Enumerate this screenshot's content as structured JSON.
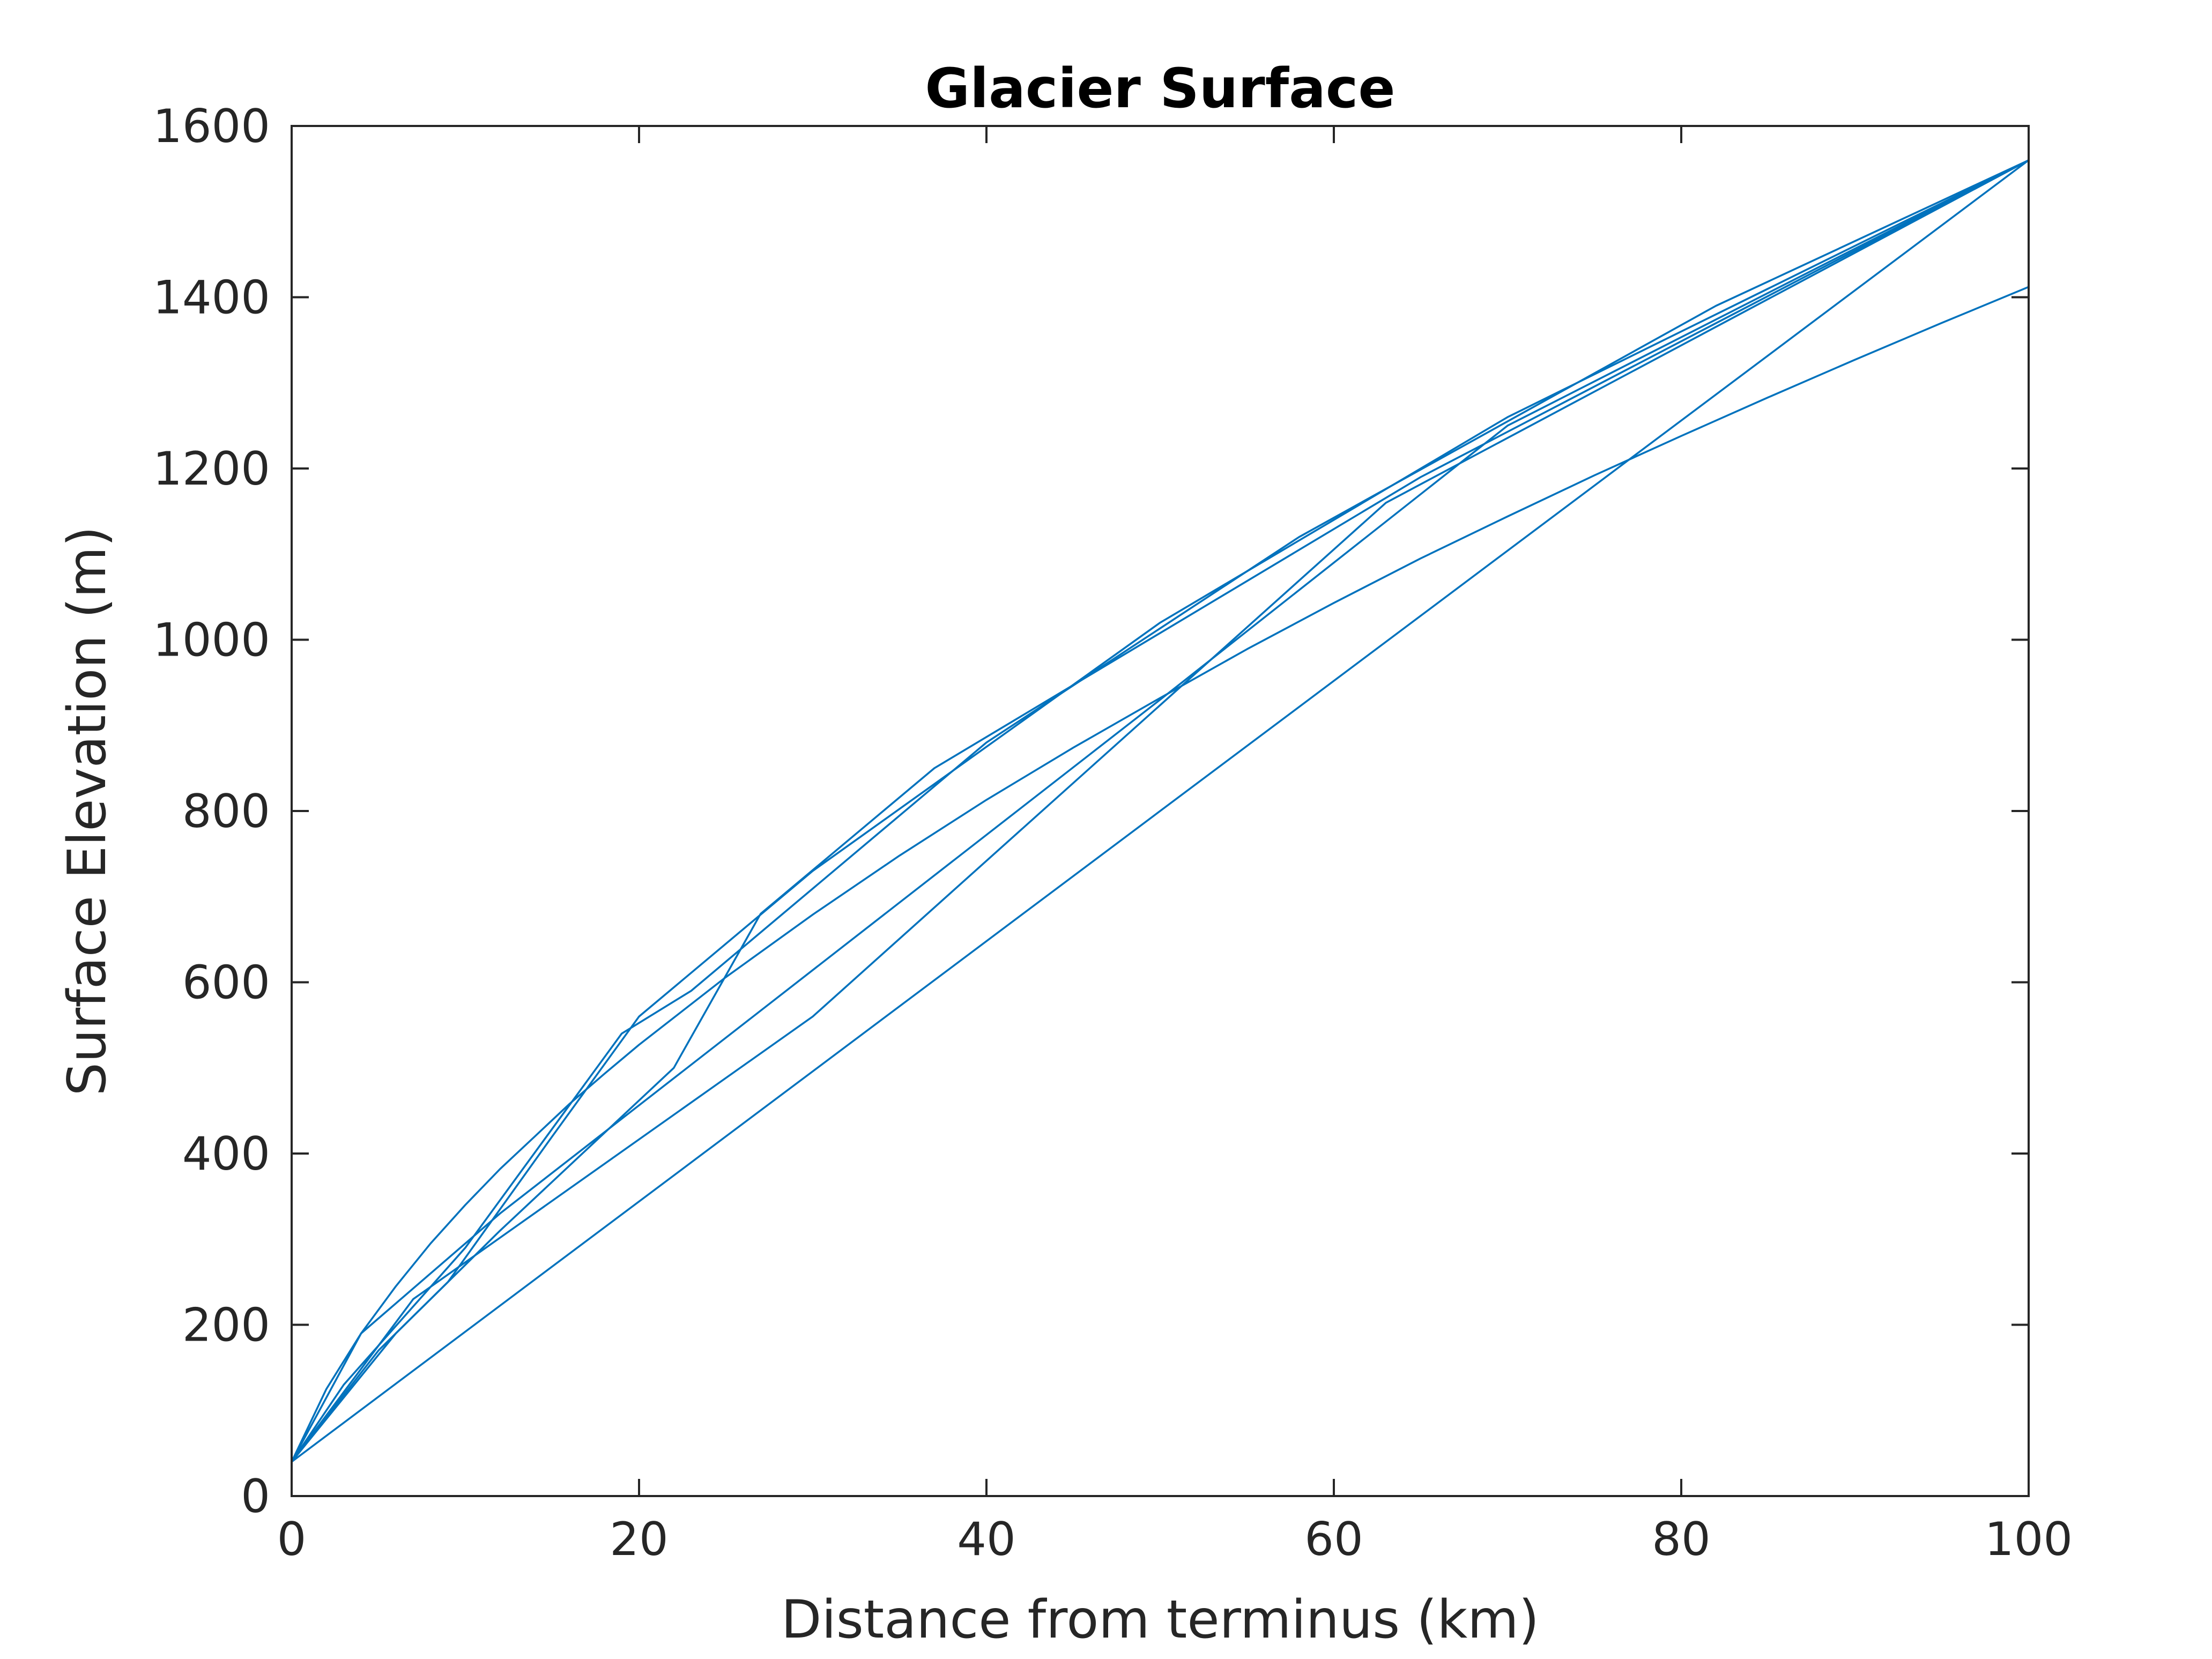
{
  "chart_data": {
    "type": "line",
    "title": "Glacier Surface",
    "xlabel": "Distance from terminus (km)",
    "ylabel": "Surface Elevation (m)",
    "xlim": [
      0,
      100
    ],
    "ylim": [
      0,
      1600
    ],
    "xticks": [
      0,
      20,
      40,
      60,
      80,
      100
    ],
    "yticks": [
      0,
      200,
      400,
      600,
      800,
      1000,
      1200,
      1400,
      1600
    ],
    "grid": false,
    "legend": "none",
    "line_color": "#0072BD",
    "series": [
      {
        "x": [
          0,
          2,
          4,
          6,
          8,
          10,
          12,
          14,
          16,
          18,
          20,
          25,
          30,
          35,
          40,
          45,
          50,
          55,
          60,
          65,
          70,
          75,
          80,
          85,
          90,
          95,
          100
        ],
        "y": [
          40,
          125,
          190,
          245,
          295,
          340,
          382,
          420,
          458,
          493,
          527,
          606,
          679,
          748,
          813,
          874,
          932,
          989,
          1043,
          1095,
          1144,
          1192,
          1238,
          1283,
          1327,
          1370,
          1412
        ]
      },
      {
        "x": [
          0,
          100
        ],
        "y": [
          40,
          1560
        ]
      },
      {
        "x": [
          0,
          7,
          30,
          63,
          100
        ],
        "y": [
          40,
          230,
          560,
          1160,
          1560
        ]
      },
      {
        "x": [
          0,
          4,
          12,
          50,
          70,
          100
        ],
        "y": [
          40,
          190,
          330,
          930,
          1250,
          1560
        ]
      },
      {
        "x": [
          0,
          6,
          12,
          22,
          27,
          37,
          65,
          100
        ],
        "y": [
          40,
          190,
          310,
          500,
          680,
          850,
          1190,
          1560
        ]
      },
      {
        "x": [
          0,
          3,
          10,
          19,
          23,
          40,
          58,
          82,
          100
        ],
        "y": [
          40,
          130,
          290,
          540,
          590,
          880,
          1120,
          1390,
          1560
        ]
      },
      {
        "x": [
          0,
          5,
          9,
          15,
          20,
          30,
          50,
          70,
          85,
          100
        ],
        "y": [
          40,
          170,
          250,
          420,
          560,
          730,
          1020,
          1260,
          1410,
          1560
        ]
      }
    ]
  }
}
